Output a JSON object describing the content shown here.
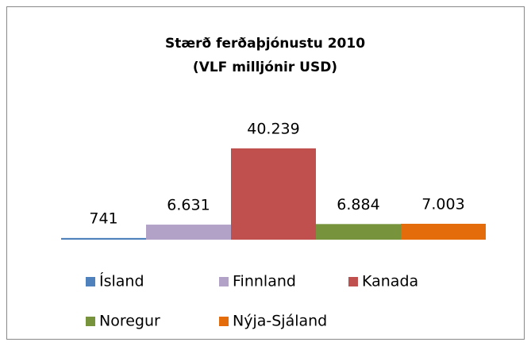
{
  "chart_data": {
    "type": "bar",
    "title": "Stærð ferðaþjónustu 2010",
    "subtitle": "(VLF milljónir USD)",
    "categories": [
      "Ísland",
      "Finnland",
      "Kanada",
      "Noregur",
      "Nýja-Sjáland"
    ],
    "values": [
      741,
      6631,
      40239,
      6884,
      7003
    ],
    "value_labels": [
      "741",
      "6.631",
      "40.239",
      "6.884",
      "7.003"
    ],
    "colors": [
      "#4f81bd",
      "#b3a2c7",
      "#c0504d",
      "#77933c",
      "#e46c0a"
    ],
    "legend": "bottom"
  }
}
